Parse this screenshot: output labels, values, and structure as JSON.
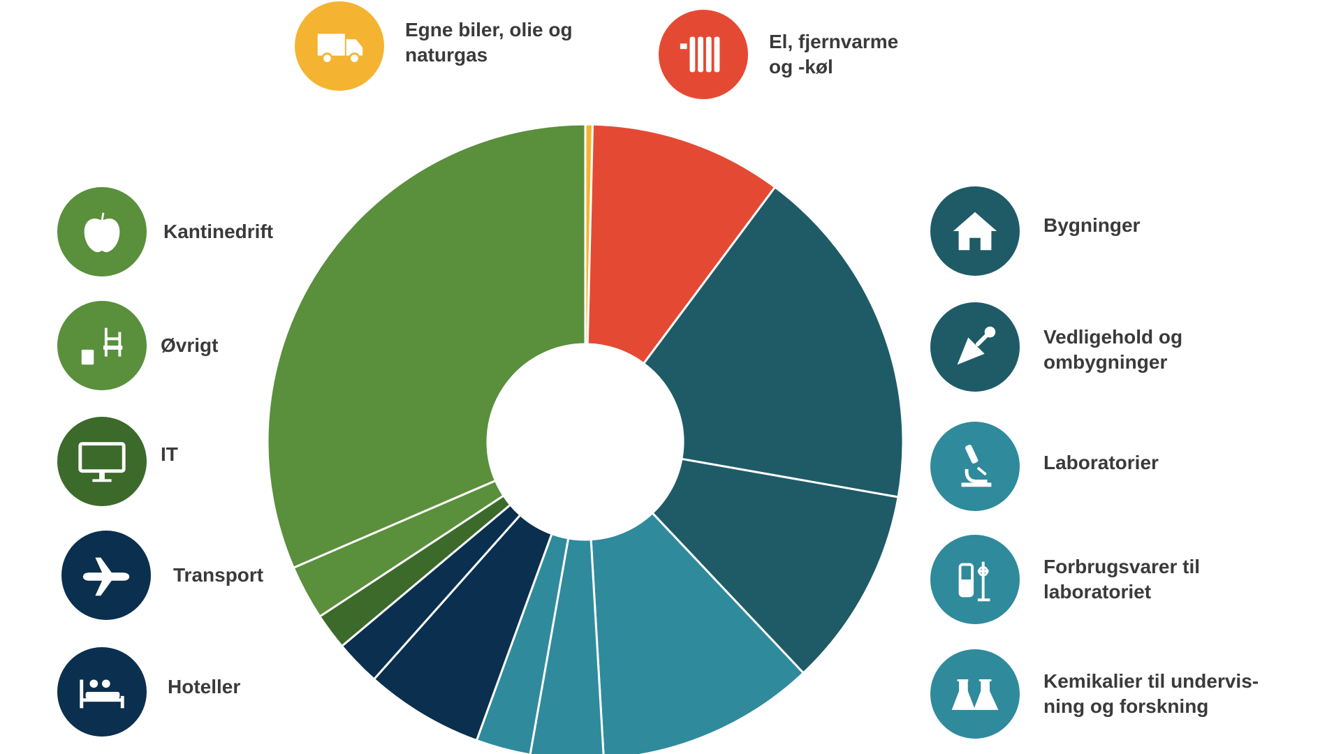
{
  "chart_data": {
    "type": "pie",
    "title": "",
    "series": [
      {
        "name": "Egne biler, olie og naturgas",
        "value": 0.4,
        "color": "#f4b431"
      },
      {
        "name": "El, fjernvarme og -køl",
        "value": 10.6,
        "color": "#e44a33"
      },
      {
        "name": "Bygninger",
        "value": 19.0,
        "color": "#1e5b67"
      },
      {
        "name": "Vedligehold og ombygninger",
        "value": 11.0,
        "color": "#1e5b67"
      },
      {
        "name": "Laboratorier",
        "value": 12.0,
        "color": "#2f8a9c"
      },
      {
        "name": "Forbrugsvarer til laboratoriet",
        "value": 4.0,
        "color": "#2f8a9c"
      },
      {
        "name": "Kemikalier til undervisning og forskning",
        "value": 3.0,
        "color": "#2f8a9c"
      },
      {
        "name": "Hoteller",
        "value": 6.5,
        "color": "#0b2f4e"
      },
      {
        "name": "Transport",
        "value": 2.5,
        "color": "#0b2f4e"
      },
      {
        "name": "IT",
        "value": 2.0,
        "color": "#3b6a2a"
      },
      {
        "name": "Øvrigt",
        "value": 3.0,
        "color": "#5a8f3c"
      },
      {
        "name": "Kantinedrift",
        "value": 34.0,
        "color": "#5a8f3c"
      }
    ]
  },
  "legend": {
    "fuel": {
      "line1": "Egne biler, olie og",
      "line2": "naturgas",
      "icon": "truck-icon",
      "color": "#f4b431"
    },
    "power": {
      "line1": "El, fjernvarme",
      "line2": "og -køl",
      "icon": "radiator-icon",
      "color": "#e44a33"
    },
    "buildings": {
      "line1": "Bygninger",
      "icon": "house-icon",
      "color": "#1e5b67"
    },
    "maintenance": {
      "line1": "Vedligehold og",
      "line2": "ombygninger",
      "icon": "trowel-icon",
      "color": "#1e5b67"
    },
    "labs": {
      "line1": "Laboratorier",
      "icon": "microscope-icon",
      "color": "#2f8a9c"
    },
    "consumables": {
      "line1": "Forbrugsvarer til",
      "line2": "laboratoriet",
      "icon": "lab-equipment-icon",
      "color": "#2f8a9c"
    },
    "chemicals": {
      "line1": "Kemikalier til undervis-",
      "line2": "ning og forskning",
      "icon": "flask-icon",
      "color": "#2f8a9c"
    },
    "canteen": {
      "line1": "Kantinedrift",
      "icon": "apple-icon",
      "color": "#5a8f3c"
    },
    "other": {
      "line1": "Øvrigt",
      "icon": "chair-icon",
      "color": "#5a8f3c"
    },
    "it": {
      "line1": "IT",
      "icon": "monitor-icon",
      "color": "#3b6a2a"
    },
    "transport": {
      "line1": "Transport",
      "icon": "airplane-icon",
      "color": "#0b2f4e"
    },
    "hotels": {
      "line1": "Hoteller",
      "icon": "bed-icon",
      "color": "#0b2f4e"
    }
  }
}
